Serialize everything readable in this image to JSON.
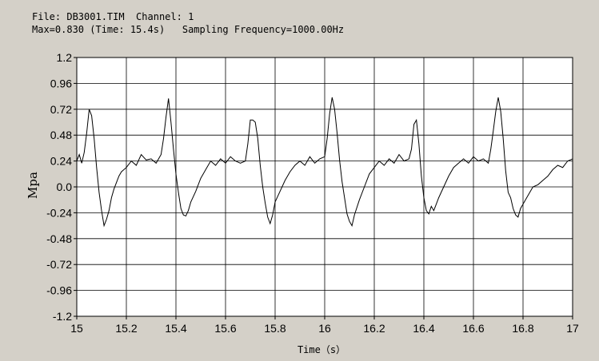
{
  "header": {
    "line1": "File: DB3001.TIM  Channel: 1",
    "line2": "Max=0.830 (Time: 15.4s)   Sampling Frequency=1000.00Hz"
  },
  "colors": {
    "background": "#d4d0c8",
    "plot_area": "#ffffff",
    "grid": "#000000",
    "trace": "#000000"
  },
  "chart_data": {
    "type": "line",
    "xlabel": "Time（s）",
    "ylabel": "Mpa",
    "xlim": [
      15,
      17
    ],
    "ylim": [
      -1.2,
      1.2
    ],
    "x_ticks": [
      "15",
      "15.2",
      "15.4",
      "15.6",
      "15.8",
      "16",
      "16.2",
      "16.4",
      "16.6",
      "16.8",
      "17"
    ],
    "y_ticks": [
      "1.2",
      "0.96",
      "0.72",
      "0.48",
      "0.24",
      "0.0",
      "-0.24",
      "-0.48",
      "-0.72",
      "-0.96",
      "-1.2"
    ],
    "grid": true,
    "series": [
      {
        "x": [
          15.0,
          15.01,
          15.02,
          15.03,
          15.04,
          15.05,
          15.06,
          15.07,
          15.08,
          15.09,
          15.1,
          15.11,
          15.12,
          15.13,
          15.14,
          15.15,
          15.16,
          15.17,
          15.18,
          15.2,
          15.22,
          15.24,
          15.26,
          15.28,
          15.3,
          15.32,
          15.34,
          15.35,
          15.36,
          15.37,
          15.38,
          15.39,
          15.4,
          15.41,
          15.42,
          15.43,
          15.44,
          15.45,
          15.46,
          15.48,
          15.5,
          15.52,
          15.54,
          15.56,
          15.58,
          15.6,
          15.62,
          15.64,
          15.66,
          15.68,
          15.69,
          15.7,
          15.71,
          15.72,
          15.73,
          15.74,
          15.75,
          15.76,
          15.77,
          15.78,
          15.79,
          15.8,
          15.82,
          15.84,
          15.86,
          15.88,
          15.9,
          15.92,
          15.94,
          15.96,
          15.98,
          16.0,
          16.01,
          16.02,
          16.03,
          16.04,
          16.05,
          16.06,
          16.07,
          16.08,
          16.09,
          16.1,
          16.11,
          16.12,
          16.14,
          16.16,
          16.18,
          16.2,
          16.22,
          16.24,
          16.26,
          16.28,
          16.3,
          16.32,
          16.34,
          16.35,
          16.36,
          16.37,
          16.38,
          16.39,
          16.4,
          16.41,
          16.42,
          16.43,
          16.44,
          16.46,
          16.48,
          16.5,
          16.52,
          16.54,
          16.56,
          16.58,
          16.6,
          16.62,
          16.64,
          16.66,
          16.67,
          16.68,
          16.69,
          16.7,
          16.71,
          16.72,
          16.73,
          16.74,
          16.75,
          16.76,
          16.77,
          16.78,
          16.79,
          16.8,
          16.82,
          16.84,
          16.86,
          16.88,
          16.9,
          16.92,
          16.94,
          16.96,
          16.98,
          17.0
        ],
        "y": [
          0.24,
          0.3,
          0.22,
          0.32,
          0.5,
          0.72,
          0.66,
          0.45,
          0.18,
          -0.05,
          -0.22,
          -0.36,
          -0.3,
          -0.22,
          -0.1,
          -0.02,
          0.04,
          0.1,
          0.14,
          0.18,
          0.24,
          0.2,
          0.3,
          0.25,
          0.26,
          0.22,
          0.3,
          0.45,
          0.65,
          0.82,
          0.6,
          0.35,
          0.12,
          -0.05,
          -0.2,
          -0.26,
          -0.27,
          -0.22,
          -0.14,
          -0.04,
          0.08,
          0.16,
          0.24,
          0.2,
          0.26,
          0.22,
          0.28,
          0.24,
          0.22,
          0.24,
          0.4,
          0.62,
          0.62,
          0.6,
          0.45,
          0.2,
          0.0,
          -0.15,
          -0.28,
          -0.34,
          -0.26,
          -0.14,
          -0.04,
          0.06,
          0.14,
          0.2,
          0.24,
          0.2,
          0.28,
          0.22,
          0.26,
          0.28,
          0.45,
          0.68,
          0.83,
          0.72,
          0.5,
          0.25,
          0.05,
          -0.1,
          -0.25,
          -0.32,
          -0.36,
          -0.26,
          -0.12,
          0.0,
          0.12,
          0.18,
          0.24,
          0.2,
          0.26,
          0.22,
          0.3,
          0.24,
          0.26,
          0.35,
          0.58,
          0.62,
          0.4,
          0.1,
          -0.1,
          -0.22,
          -0.25,
          -0.18,
          -0.22,
          -0.1,
          0.0,
          0.1,
          0.18,
          0.22,
          0.26,
          0.22,
          0.28,
          0.24,
          0.26,
          0.22,
          0.35,
          0.52,
          0.7,
          0.83,
          0.7,
          0.45,
          0.15,
          -0.05,
          -0.1,
          -0.2,
          -0.26,
          -0.28,
          -0.2,
          -0.16,
          -0.08,
          0.0,
          0.02,
          0.06,
          0.1,
          0.16,
          0.2,
          0.18,
          0.24,
          0.26
        ]
      }
    ]
  }
}
